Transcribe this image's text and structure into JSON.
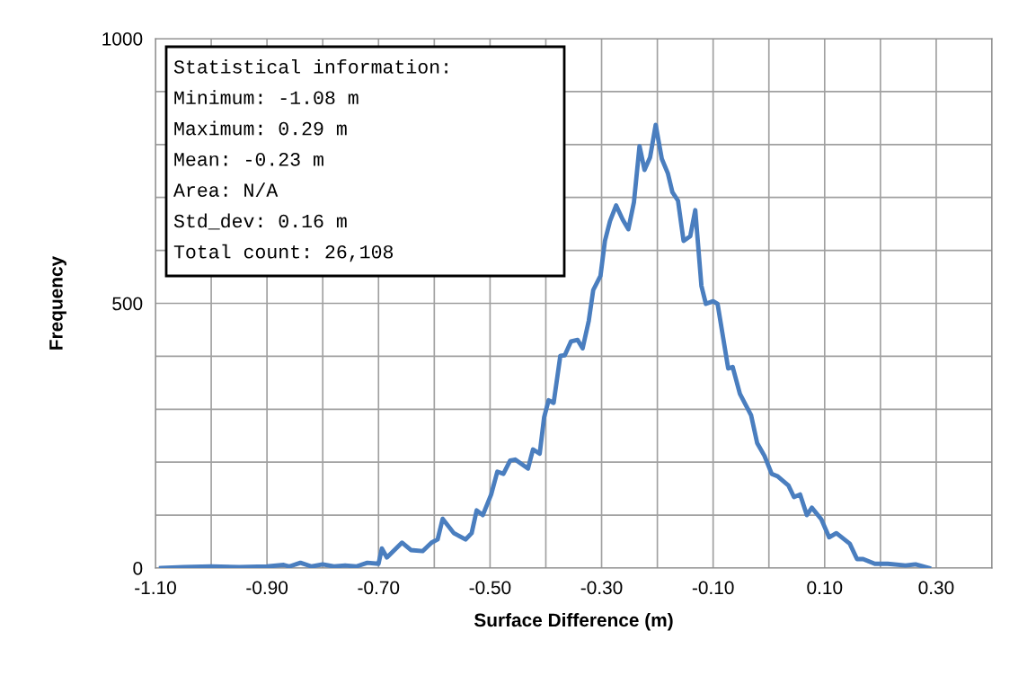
{
  "chart_data": {
    "type": "line",
    "xlabel": "Surface Difference (m)",
    "ylabel": "Frequency",
    "x": [
      -1.09,
      -1.05,
      -1.0,
      -0.95,
      -0.9,
      -0.87,
      -0.86,
      -0.84,
      -0.82,
      -0.8,
      -0.78,
      -0.76,
      -0.74,
      -0.72,
      -0.7,
      -0.694,
      -0.685,
      -0.658,
      -0.642,
      -0.621,
      -0.605,
      -0.594,
      -0.585,
      -0.565,
      -0.544,
      -0.533,
      -0.524,
      -0.513,
      -0.498,
      -0.487,
      -0.476,
      -0.464,
      -0.455,
      -0.432,
      -0.423,
      -0.411,
      -0.403,
      -0.395,
      -0.386,
      -0.374,
      -0.366,
      -0.355,
      -0.343,
      -0.334,
      -0.323,
      -0.315,
      -0.302,
      -0.294,
      -0.285,
      -0.274,
      -0.262,
      -0.252,
      -0.242,
      -0.232,
      -0.223,
      -0.213,
      -0.203,
      -0.192,
      -0.181,
      -0.173,
      -0.163,
      -0.153,
      -0.141,
      -0.132,
      -0.121,
      -0.113,
      -0.1,
      -0.092,
      -0.073,
      -0.065,
      -0.052,
      -0.032,
      -0.021,
      -0.008,
      0.005,
      0.016,
      0.035,
      0.045,
      0.056,
      0.068,
      0.077,
      0.094,
      0.108,
      0.121,
      0.145,
      0.158,
      0.169,
      0.19,
      0.213,
      0.245,
      0.263,
      0.287
    ],
    "series": [
      {
        "color": "#4a7ebf",
        "values": [
          0,
          2,
          3,
          2,
          3,
          6,
          3,
          10,
          3,
          7,
          3,
          5,
          3,
          10,
          8,
          37,
          20,
          48,
          34,
          32,
          48,
          54,
          93,
          66,
          54,
          66,
          109,
          100,
          139,
          182,
          178,
          203,
          205,
          188,
          224,
          216,
          285,
          317,
          312,
          401,
          402,
          428,
          431,
          415,
          467,
          525,
          552,
          618,
          655,
          685,
          658,
          640,
          691,
          797,
          752,
          776,
          837,
          773,
          745,
          710,
          694,
          618,
          627,
          676,
          533,
          499,
          504,
          499,
          377,
          380,
          329,
          289,
          236,
          212,
          178,
          173,
          156,
          134,
          139,
          100,
          114,
          92,
          58,
          66,
          46,
          17,
          17,
          8,
          8,
          5,
          7,
          0
        ]
      }
    ],
    "xlim": [
      -1.1,
      0.4
    ],
    "xticks": [
      {
        "value": -1.1,
        "label": "-1.10"
      },
      {
        "value": -1.0,
        "label": null
      },
      {
        "value": -0.9,
        "label": "-0.90"
      },
      {
        "value": -0.8,
        "label": null
      },
      {
        "value": -0.7,
        "label": "-0.70"
      },
      {
        "value": -0.6,
        "label": null
      },
      {
        "value": -0.5,
        "label": "-0.50"
      },
      {
        "value": -0.4,
        "label": null
      },
      {
        "value": -0.3,
        "label": "-0.30"
      },
      {
        "value": -0.2,
        "label": null
      },
      {
        "value": -0.1,
        "label": "-0.10"
      },
      {
        "value": 0.0,
        "label": null
      },
      {
        "value": 0.1,
        "label": "0.10"
      },
      {
        "value": 0.2,
        "label": null
      },
      {
        "value": 0.3,
        "label": "0.30"
      },
      {
        "value": 0.4,
        "label": null
      }
    ],
    "ylim": [
      0,
      1000
    ],
    "yticks": [
      0,
      {
        "value": 100,
        "label": null
      },
      {
        "value": 200,
        "label": null
      },
      {
        "value": 300,
        "label": null
      },
      {
        "value": 400,
        "label": null
      },
      500,
      {
        "value": 600,
        "label": null
      },
      {
        "value": 700,
        "label": null
      },
      {
        "value": 800,
        "label": null
      },
      {
        "value": 900,
        "label": null
      },
      1000
    ],
    "grid": true,
    "line_style": "solid",
    "annotations": [
      "Statistical information:",
      "Minimum: -1.08 m",
      "Maximum: 0.29 m",
      "Mean: -0.23 m",
      "Area: N/A",
      "Std_dev: 0.16 m",
      "Total count: 26,108"
    ]
  }
}
